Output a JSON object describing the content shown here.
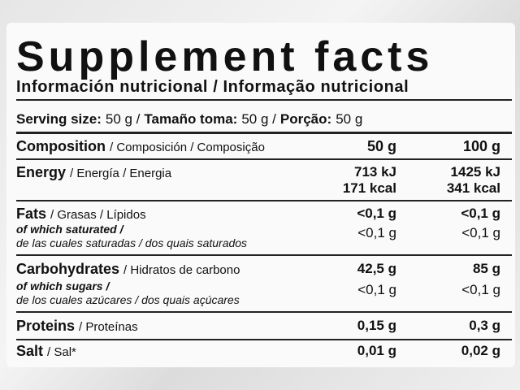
{
  "title": "Supplement facts",
  "subtitle": "Información nutricional / Informação nutricional",
  "serving": [
    "Serving size:",
    "50 g /",
    "Tamaño toma:",
    "50 g /",
    "Porção:",
    "50 g"
  ],
  "table": {
    "header": {
      "label": "Composition",
      "translations": "/ Composición / Composição",
      "columns": [
        "50 g",
        "100 g"
      ]
    },
    "rows": [
      {
        "label": "Energy",
        "translations": "/ Energía / Energia",
        "values": [
          [
            "713 kJ",
            "171 kcal"
          ],
          [
            "1425 kJ",
            "341 kcal"
          ]
        ]
      },
      {
        "label": "Fats",
        "translations": "/ Grasas / Lípidos",
        "values": [
          "<0,1 g",
          "<0,1 g"
        ],
        "sub": {
          "label": "of which saturated /",
          "translations": "de las cuales saturadas / dos quais saturados",
          "values": [
            "<0,1 g",
            "<0,1 g"
          ]
        }
      },
      {
        "label": "Carbohydrates",
        "translations": "/ Hidratos de carbono",
        "values": [
          "42,5 g",
          "85 g"
        ],
        "sub": {
          "label": "of which sugars /",
          "translations": "de los cuales azúcares / dos quais açúcares",
          "values": [
            "<0,1 g",
            "<0,1 g"
          ]
        }
      },
      {
        "label": "Proteins",
        "translations": "/ Proteínas",
        "values": [
          "0,15 g",
          "0,3 g"
        ]
      },
      {
        "label": "Salt",
        "translations": "/ Sal*",
        "values": [
          "0,01 g",
          "0,02 g"
        ]
      }
    ]
  }
}
